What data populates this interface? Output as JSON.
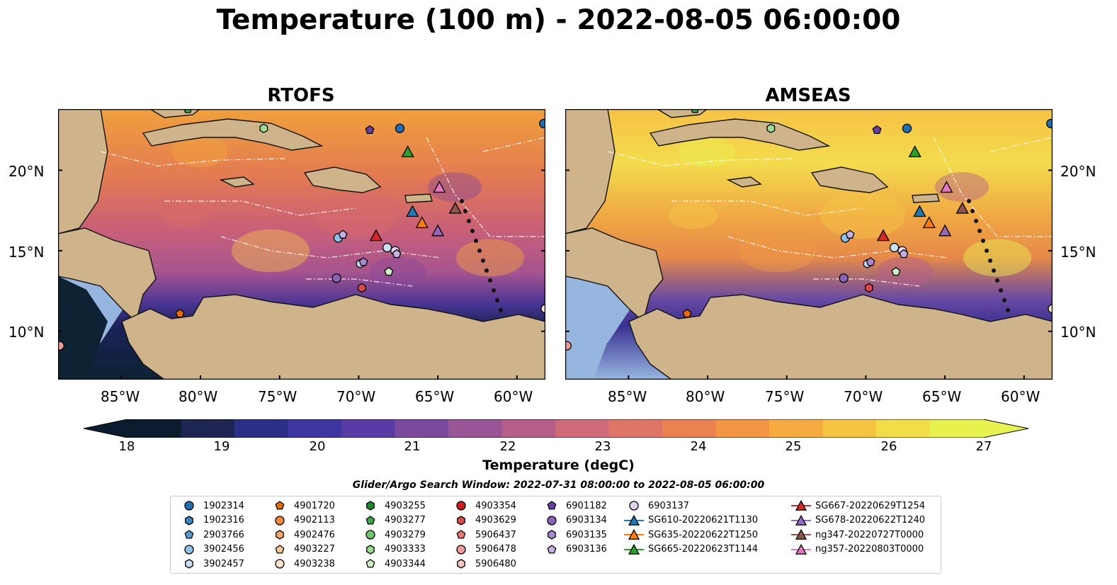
{
  "title": "Temperature (100 m) - 2022-08-05 06:00:00",
  "panels": [
    {
      "title": "RTOFS"
    },
    {
      "title": "AMSEAS"
    }
  ],
  "axes": {
    "lon_ticks": [
      "85°W",
      "80°W",
      "75°W",
      "70°W",
      "65°W",
      "60°W"
    ],
    "lat_ticks": [
      "20°N",
      "15°N",
      "10°N"
    ]
  },
  "colorbar": {
    "label": "Temperature (degC)",
    "ticks": [
      "18",
      "19",
      "20",
      "21",
      "22",
      "23",
      "24",
      "25",
      "26",
      "27"
    ],
    "range": [
      18,
      27
    ],
    "colors": [
      "#0a1c2e",
      "#1d2553",
      "#2b2f86",
      "#3d36a0",
      "#5a3ba5",
      "#7b4a9f",
      "#9a5596",
      "#b55e8a",
      "#ce6a7a",
      "#df7566",
      "#ec8250",
      "#f49544",
      "#f7aa3f",
      "#f6c441",
      "#f2dc48",
      "#e8f24f"
    ]
  },
  "search_window": "Glider/Argo Search Window: 2022-07-31 08:00:00 to 2022-08-05 06:00:00",
  "legend": {
    "columns": [
      [
        {
          "label": "1902314",
          "marker": "circle",
          "color": "#1f6fb2"
        },
        {
          "label": "1902316",
          "marker": "hexagon",
          "color": "#3f86c2"
        },
        {
          "label": "2903766",
          "marker": "pentagon",
          "color": "#5b9bd5"
        },
        {
          "label": "3902456",
          "marker": "circle",
          "color": "#8fc0e6"
        },
        {
          "label": "3902457",
          "marker": "hexagon",
          "color": "#c9e1f3"
        }
      ],
      [
        {
          "label": "4901720",
          "marker": "pentagon",
          "color": "#e66a00"
        },
        {
          "label": "4902113",
          "marker": "circle",
          "color": "#f58b3a"
        },
        {
          "label": "4902476",
          "marker": "hexagon",
          "color": "#f8a868"
        },
        {
          "label": "4903227",
          "marker": "pentagon",
          "color": "#fbc795"
        },
        {
          "label": "4903238",
          "marker": "circle",
          "color": "#fde2c6"
        }
      ],
      [
        {
          "label": "4903255",
          "marker": "hexagon",
          "color": "#1e8a2e"
        },
        {
          "label": "4903277",
          "marker": "pentagon",
          "color": "#3da84a"
        },
        {
          "label": "4903279",
          "marker": "circle",
          "color": "#6cc66f"
        },
        {
          "label": "4903333",
          "marker": "hexagon",
          "color": "#9bdc92"
        },
        {
          "label": "4903344",
          "marker": "pentagon",
          "color": "#cdf0c4"
        }
      ],
      [
        {
          "label": "4903354",
          "marker": "circle",
          "color": "#c81e1e"
        },
        {
          "label": "4903629",
          "marker": "hexagon",
          "color": "#de4a4a"
        },
        {
          "label": "5906437",
          "marker": "pentagon",
          "color": "#ea7373"
        },
        {
          "label": "5906478",
          "marker": "circle",
          "color": "#f39b9b"
        },
        {
          "label": "5906480",
          "marker": "hexagon",
          "color": "#f9c6c6"
        }
      ],
      [
        {
          "label": "6901182",
          "marker": "pentagon",
          "color": "#6b3fa0"
        },
        {
          "label": "6903134",
          "marker": "circle",
          "color": "#8a63b8"
        },
        {
          "label": "6903135",
          "marker": "hexagon",
          "color": "#a98ad0"
        },
        {
          "label": "6903136",
          "marker": "pentagon",
          "color": "#c5b0e4"
        }
      ],
      [
        {
          "label": "6903137",
          "marker": "circle",
          "color": "#e2d4f3"
        },
        {
          "label": "SG610-20220621T1130",
          "marker": "triangle-line",
          "color": "#1f77b4"
        },
        {
          "label": "SG635-20220622T1250",
          "marker": "triangle-line",
          "color": "#ff7f0e"
        },
        {
          "label": "SG665-20220623T1144",
          "marker": "triangle-line",
          "color": "#2ca02c"
        }
      ],
      [
        {
          "label": "SG667-20220629T1254",
          "marker": "triangle-line",
          "color": "#d62728"
        },
        {
          "label": "SG678-20220622T1240",
          "marker": "triangle-line",
          "color": "#9467bd"
        },
        {
          "label": "ng347-20220727T0000",
          "marker": "triangle-line",
          "color": "#8c564b"
        },
        {
          "label": "ng357-20220803T0000",
          "marker": "triangle-line",
          "color": "#e377c2"
        }
      ]
    ]
  },
  "map_colors": {
    "land": "#cfb48b",
    "water_fill": "#96b6e0",
    "deep": "#0d2233"
  },
  "platforms": [
    {
      "lon": -67.4,
      "lat": 22.6,
      "marker": "circle",
      "color": "#1f6fb2"
    },
    {
      "lon": -58.3,
      "lat": 22.9,
      "marker": "circle",
      "color": "#1f6fb2"
    },
    {
      "lon": -69.3,
      "lat": 22.5,
      "marker": "pentagon",
      "color": "#6b3fa0"
    },
    {
      "lon": -76.0,
      "lat": 22.6,
      "marker": "hexagon",
      "color": "#9bdc92"
    },
    {
      "lon": -80.8,
      "lat": 23.8,
      "marker": "pentagon",
      "color": "#3da84a"
    },
    {
      "lon": -71.3,
      "lat": 15.8,
      "marker": "circle",
      "color": "#8fc0e6"
    },
    {
      "lon": -71.0,
      "lat": 16.0,
      "marker": "pentagon",
      "color": "#c5b0e4"
    },
    {
      "lon": -68.2,
      "lat": 15.2,
      "marker": "circle",
      "color": "#c9e1f3"
    },
    {
      "lon": -67.7,
      "lat": 15.0,
      "marker": "circle",
      "color": "#e2d4f3"
    },
    {
      "lon": -67.6,
      "lat": 14.8,
      "marker": "pentagon",
      "color": "#c5b0e4"
    },
    {
      "lon": -69.9,
      "lat": 14.2,
      "marker": "hexagon",
      "color": "#c9e1f3"
    },
    {
      "lon": -69.7,
      "lat": 14.3,
      "marker": "pentagon",
      "color": "#a98ad0"
    },
    {
      "lon": -71.4,
      "lat": 13.3,
      "marker": "circle",
      "color": "#8a63b8"
    },
    {
      "lon": -69.8,
      "lat": 12.7,
      "marker": "hexagon",
      "color": "#de4a4a"
    },
    {
      "lon": -68.1,
      "lat": 13.7,
      "marker": "pentagon",
      "color": "#cdf0c4"
    },
    {
      "lon": -81.3,
      "lat": 11.1,
      "marker": "pentagon",
      "color": "#e66a00"
    },
    {
      "lon": -88.9,
      "lat": 9.1,
      "marker": "circle",
      "color": "#f39b9b"
    },
    {
      "lon": -58.2,
      "lat": 11.4,
      "marker": "circle",
      "color": "#fde2c6"
    },
    {
      "lon": -66.9,
      "lat": 21.1,
      "marker": "triangle",
      "color": "#2ca02c"
    },
    {
      "lon": -64.9,
      "lat": 18.9,
      "marker": "triangle",
      "color": "#e377c2"
    },
    {
      "lon": -66.6,
      "lat": 17.4,
      "marker": "triangle",
      "color": "#1f77b4"
    },
    {
      "lon": -63.9,
      "lat": 17.6,
      "marker": "triangle",
      "color": "#8c564b"
    },
    {
      "lon": -66.0,
      "lat": 16.7,
      "marker": "triangle",
      "color": "#ff7f0e"
    },
    {
      "lon": -65.0,
      "lat": 16.2,
      "marker": "triangle",
      "color": "#9467bd"
    },
    {
      "lon": -68.9,
      "lat": 15.9,
      "marker": "triangle",
      "color": "#d62728"
    }
  ]
}
